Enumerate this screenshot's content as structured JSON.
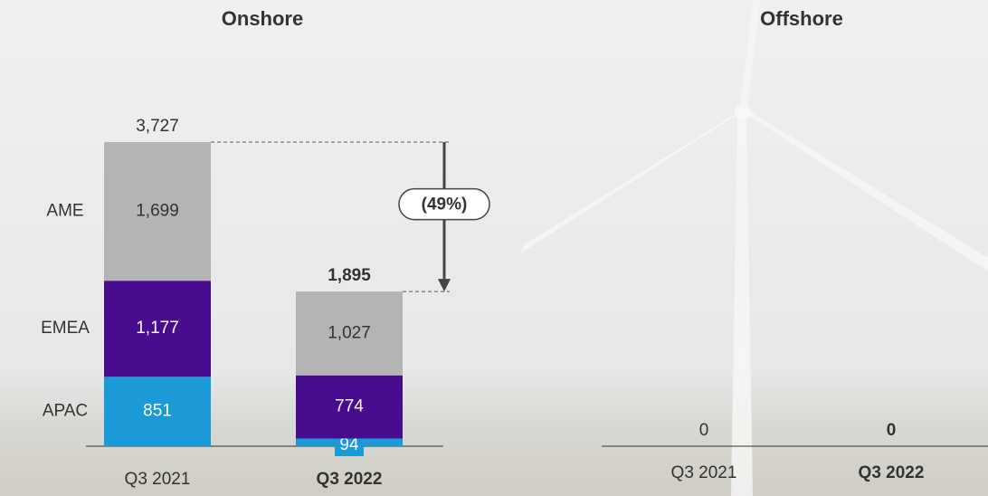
{
  "chart_data": [
    {
      "type": "stacked_bar",
      "title": "Onshore",
      "categories": [
        "Q3 2021",
        "Q3 2022"
      ],
      "series": [
        {
          "name": "APAC",
          "color": "#1b9ad8",
          "values": [
            851,
            94
          ]
        },
        {
          "name": "EMEA",
          "color": "#4a0c8e",
          "values": [
            1177,
            774
          ],
          "value_labels": [
            "1,177",
            "774"
          ]
        },
        {
          "name": "AME",
          "color": "#b4b4b4",
          "values": [
            1699,
            1027
          ],
          "value_labels": [
            "1,699",
            "1,027"
          ]
        }
      ],
      "totals": [
        3727,
        1895
      ],
      "total_labels": [
        "3,727",
        "1,895"
      ],
      "annotation": "(49%)"
    },
    {
      "type": "bar",
      "title": "Offshore",
      "categories": [
        "Q3 2021",
        "Q3 2022"
      ],
      "values": [
        0,
        0
      ]
    }
  ]
}
